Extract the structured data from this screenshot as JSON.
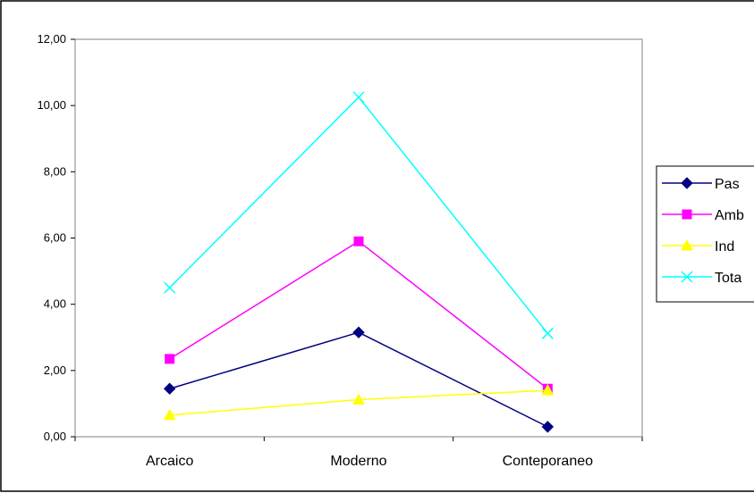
{
  "chart_data": {
    "type": "line",
    "categories": [
      "Arcaico",
      "Moderno",
      "Conteporaneo"
    ],
    "ylim": [
      0,
      12
    ],
    "yticks": [
      "0,00",
      "2,00",
      "4,00",
      "6,00",
      "8,00",
      "10,00",
      "12,00"
    ],
    "grid": false,
    "legend_position": "right",
    "series": [
      {
        "name": "Pas",
        "values": [
          1.45,
          3.15,
          0.3
        ],
        "color": "#000080",
        "marker": "diamond"
      },
      {
        "name": "Amb",
        "values": [
          2.35,
          5.9,
          1.45
        ],
        "color": "#FF00FF",
        "marker": "square"
      },
      {
        "name": "Ind",
        "values": [
          0.65,
          1.12,
          1.4
        ],
        "color": "#FFFF00",
        "marker": "triangle"
      },
      {
        "name": "Tota",
        "values": [
          4.5,
          10.25,
          3.12
        ],
        "color": "#00FFFF",
        "marker": "x"
      }
    ]
  }
}
